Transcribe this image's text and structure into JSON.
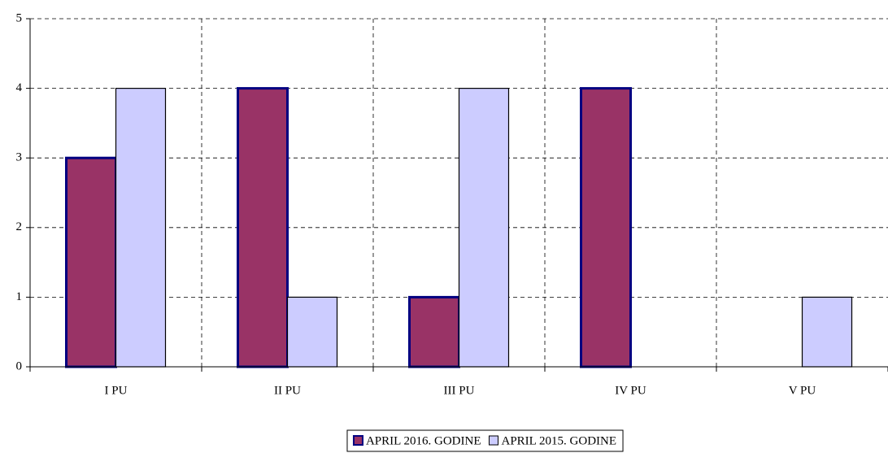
{
  "chart_data": {
    "type": "bar",
    "categories": [
      "I PU",
      "II PU",
      "III PU",
      "IV PU",
      "V PU"
    ],
    "series": [
      {
        "name": "APRIL 2016. GODINE",
        "color": "#993366",
        "values": [
          3,
          4,
          1,
          4,
          0
        ]
      },
      {
        "name": "APRIL 2015. GODINE",
        "color": "#ccccff",
        "values": [
          4,
          1,
          4,
          0,
          1
        ]
      }
    ],
    "ylim": [
      0,
      5
    ],
    "yticks": [
      0,
      1,
      2,
      3,
      4,
      5
    ],
    "grid": true,
    "legend": "bottom"
  }
}
